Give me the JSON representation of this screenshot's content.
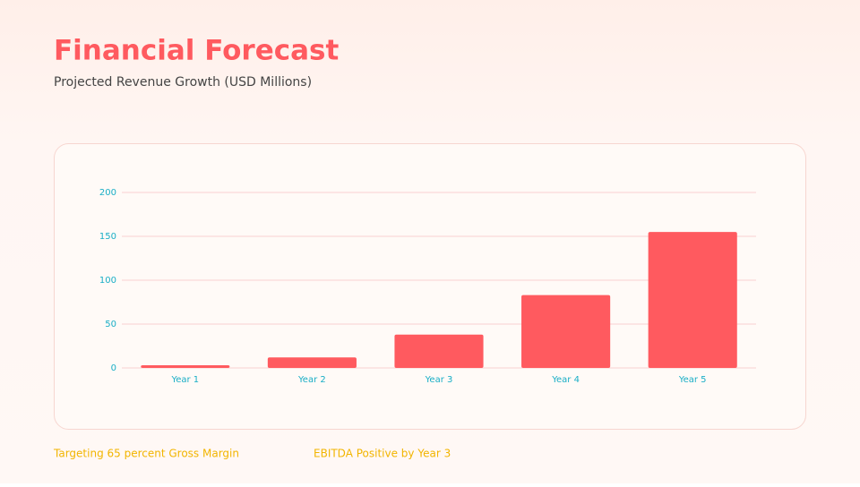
{
  "header": {
    "title": "Financial Forecast",
    "subtitle": "Projected Revenue Growth (USD Millions)"
  },
  "chart_data": {
    "type": "bar",
    "categories": [
      "Year 1",
      "Year 2",
      "Year 3",
      "Year 4",
      "Year 5"
    ],
    "values": [
      3,
      12,
      38,
      83,
      155
    ],
    "color": "#ff5a5f",
    "ylim": [
      0,
      200
    ],
    "yticks": [
      0,
      50,
      100,
      150,
      200
    ],
    "grid": true
  },
  "notes": [
    "Targeting 65 percent Gross Margin",
    "EBITDA Positive by Year 3"
  ]
}
